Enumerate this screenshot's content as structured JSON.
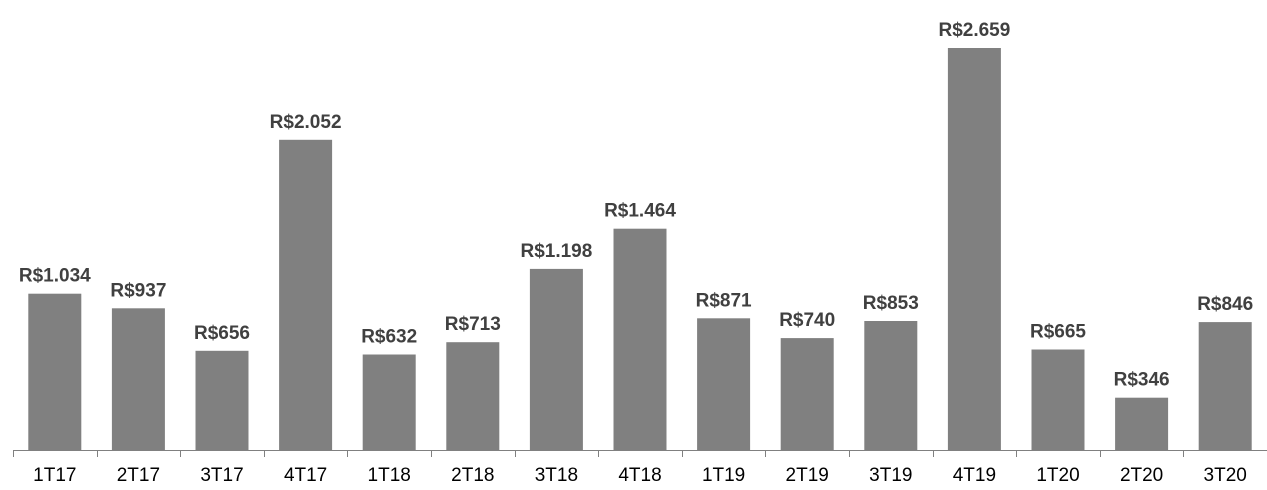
{
  "chart_data": {
    "type": "bar",
    "categories": [
      "1T17",
      "2T17",
      "3T17",
      "4T17",
      "1T18",
      "2T18",
      "3T18",
      "4T18",
      "1T19",
      "2T19",
      "3T19",
      "4T19",
      "1T20",
      "2T20",
      "3T20"
    ],
    "values": [
      1034,
      937,
      656,
      2052,
      632,
      713,
      1198,
      1464,
      871,
      740,
      853,
      2659,
      665,
      346,
      846
    ],
    "data_labels": [
      "R$1.034",
      "R$937",
      "R$656",
      "R$2.052",
      "R$632",
      "R$713",
      "R$1.198",
      "R$1.464",
      "R$871",
      "R$740",
      "R$853",
      "R$2.659",
      "R$665",
      "R$346",
      "R$846"
    ],
    "title": "",
    "xlabel": "",
    "ylabel": "",
    "ylim": [
      0,
      2659
    ],
    "grid": false,
    "legend": "none",
    "bar_color": "#808080",
    "label_color": "#404040"
  }
}
